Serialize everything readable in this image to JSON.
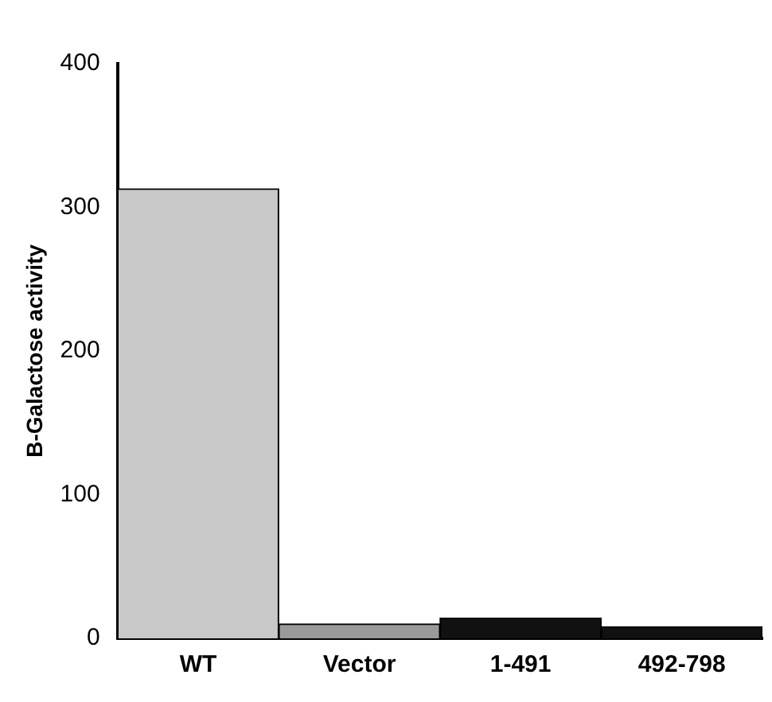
{
  "chart_data": {
    "type": "bar",
    "ylabel": "B-Galactose activity",
    "categories": [
      "WT",
      "Vector",
      "1-491",
      "492-798"
    ],
    "values": [
      313,
      10,
      14,
      8
    ],
    "colors": [
      "#c8c8c8",
      "#9a9a9a",
      "#111111",
      "#111111"
    ],
    "ylim": [
      0,
      400
    ],
    "yticks": [
      0,
      100,
      200,
      300,
      400
    ],
    "grid": false,
    "legend": false
  }
}
